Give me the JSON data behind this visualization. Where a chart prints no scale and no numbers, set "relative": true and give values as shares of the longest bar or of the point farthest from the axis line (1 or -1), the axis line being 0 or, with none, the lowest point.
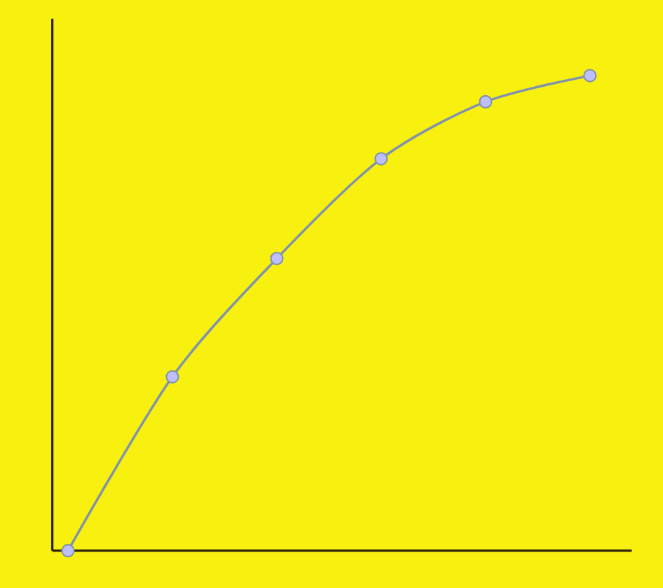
{
  "chart_data": {
    "type": "line",
    "relative": true,
    "categories": [
      null,
      null,
      null,
      null,
      null,
      null
    ],
    "series": [
      {
        "color": "#7f93ad",
        "values": [
          0,
          0.366,
          0.615,
          0.825,
          0.945,
          1
        ]
      }
    ],
    "marker": "circle"
  }
}
